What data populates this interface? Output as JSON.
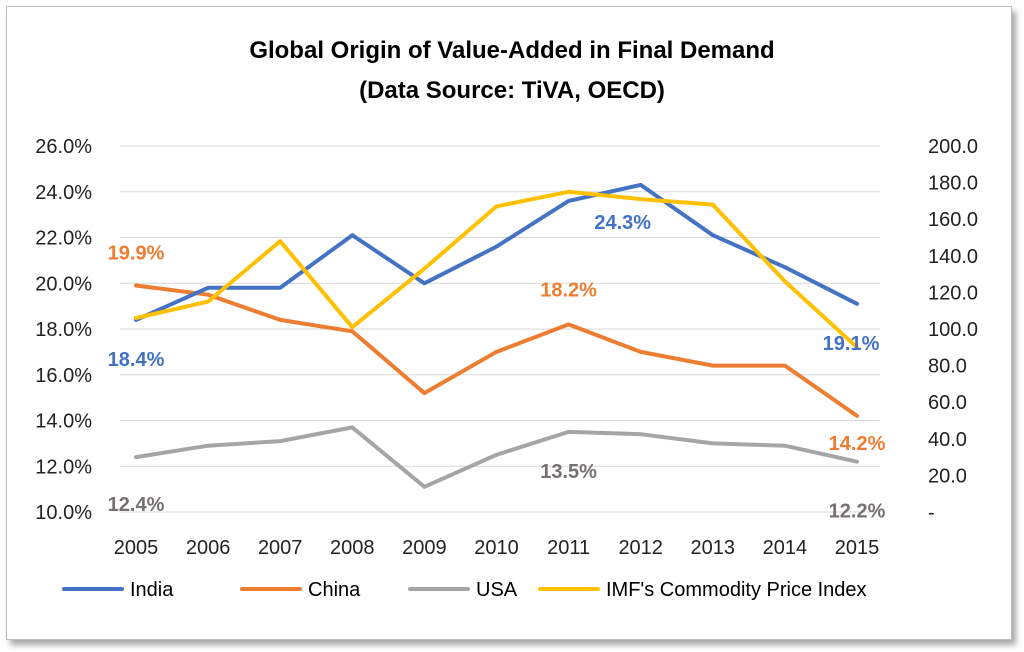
{
  "chart_data": {
    "type": "line",
    "title": "Global Origin of Value-Added in Final Demand",
    "subtitle": "(Data Source: TiVA, OECD)",
    "categories": [
      "2005",
      "2006",
      "2007",
      "2008",
      "2009",
      "2010",
      "2011",
      "2012",
      "2013",
      "2014",
      "2015"
    ],
    "y_left": {
      "min": 10,
      "max": 26,
      "step": 2,
      "ticks": [
        "10.0%",
        "12.0%",
        "14.0%",
        "16.0%",
        "18.0%",
        "20.0%",
        "22.0%",
        "24.0%",
        "26.0%"
      ]
    },
    "y_right": {
      "min": 0,
      "max": 200,
      "step": 20,
      "ticks": [
        "-",
        "20.0",
        "40.0",
        "60.0",
        "80.0",
        "100.0",
        "120.0",
        "140.0",
        "160.0",
        "180.0",
        "200.0"
      ]
    },
    "grid": true,
    "legend_position": "bottom",
    "series": [
      {
        "name": "India",
        "axis": "left",
        "color": "#4472C4",
        "values": [
          18.4,
          19.8,
          19.8,
          22.1,
          20.0,
          21.6,
          23.6,
          24.3,
          22.1,
          20.7,
          19.1
        ]
      },
      {
        "name": "China",
        "axis": "left",
        "color": "#ED7D31",
        "values": [
          19.9,
          19.5,
          18.4,
          17.9,
          15.2,
          17.0,
          18.2,
          17.0,
          16.4,
          16.4,
          14.2
        ]
      },
      {
        "name": "USA",
        "axis": "left",
        "color": "#A5A5A5",
        "values": [
          12.4,
          12.9,
          13.1,
          13.7,
          11.1,
          12.5,
          13.5,
          13.4,
          13.0,
          12.9,
          12.2
        ]
      },
      {
        "name": "IMF's Commodity Price Index",
        "axis": "right",
        "color": "#FFC000",
        "values": [
          106,
          115,
          148,
          101,
          133,
          167,
          175,
          171,
          168,
          126,
          90
        ]
      }
    ],
    "annotations": [
      {
        "series": "India",
        "index": 0,
        "text": "18.4%"
      },
      {
        "series": "India",
        "index": 7,
        "text": "24.3%"
      },
      {
        "series": "India",
        "index": 10,
        "text": "19.1%"
      },
      {
        "series": "China",
        "index": 0,
        "text": "19.9%"
      },
      {
        "series": "China",
        "index": 6,
        "text": "18.2%"
      },
      {
        "series": "China",
        "index": 10,
        "text": "14.2%"
      },
      {
        "series": "USA",
        "index": 0,
        "text": "12.4%"
      },
      {
        "series": "USA",
        "index": 6,
        "text": "13.5%"
      },
      {
        "series": "USA",
        "index": 10,
        "text": "12.2%"
      }
    ]
  }
}
